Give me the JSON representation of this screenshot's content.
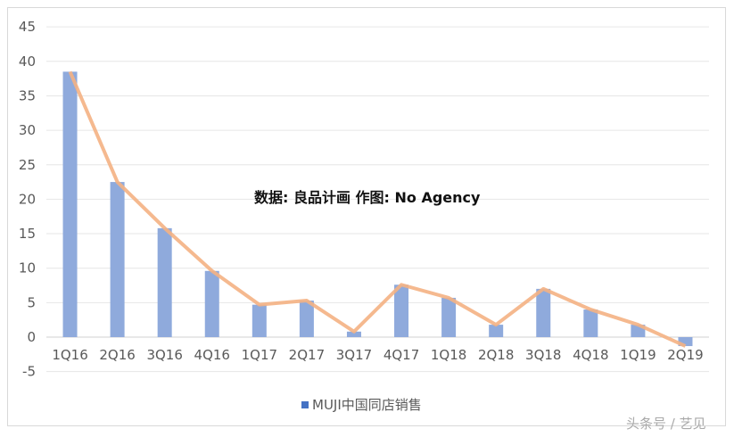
{
  "chart_data": {
    "type": "bar+line",
    "categories": [
      "1Q16",
      "2Q16",
      "3Q16",
      "4Q16",
      "1Q17",
      "2Q17",
      "3Q17",
      "4Q17",
      "1Q18",
      "2Q18",
      "3Q18",
      "4Q18",
      "1Q19",
      "2Q19"
    ],
    "series": [
      {
        "name": "MUJI中国同店销售",
        "values": [
          38.5,
          22.5,
          15.8,
          9.6,
          4.7,
          5.3,
          0.8,
          7.6,
          5.7,
          1.8,
          7.0,
          4.0,
          1.8,
          -1.3
        ]
      }
    ],
    "ylim": [
      -5,
      45
    ],
    "yticks": [
      -5,
      0,
      5,
      10,
      15,
      20,
      25,
      30,
      35,
      40,
      45
    ],
    "grid": true,
    "legend": "bottom",
    "annotation": "数据: 良品计画  作图: No Agency",
    "colors": {
      "bar": "#8faadc",
      "line": "#f4b183"
    }
  },
  "watermark": "头条号 / 艺见"
}
